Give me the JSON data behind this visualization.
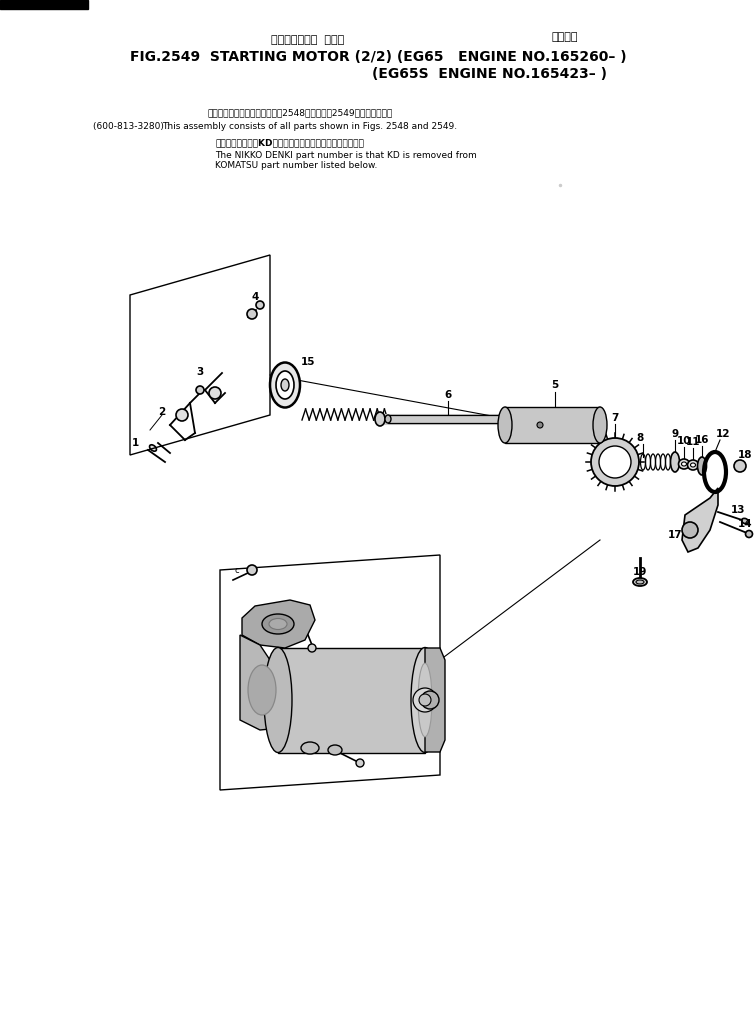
{
  "title_jp": "スターティング  モータ",
  "title_right_jp": "通用号機",
  "title_main1": "FIG.2549  STARTING MOTOR (2/2) (EG65   ENGINE NO.165260– )",
  "title_main2": "(EG65S  ENGINE NO.165423– )",
  "note1_jp": "このアセンブリの構成部品は第2548図および第2549図を含みます。",
  "note1_left": "(600-813-3280) :",
  "note1_en": "This assembly consists of all parts shown in Figs. 2548 and 2549.",
  "note2_jp": "品番のメーカ記号KDを除いたものが日賢電機の品番です。",
  "note2_en1": "The NIKKO DENKI part number is that KD is removed from",
  "note2_en2": "KOMATSU part number listed below.",
  "bg_color": "#ffffff",
  "line_color": "#000000",
  "text_color": "#000000"
}
